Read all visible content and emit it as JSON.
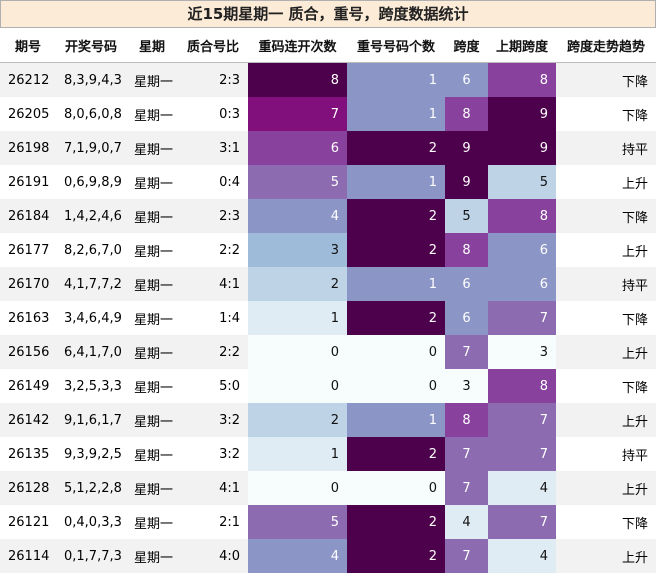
{
  "title": "近15期星期一 质合，重号，跨度数据统计",
  "columns": [
    "期号",
    "开奖号码",
    "星期",
    "质合号比",
    "重码连开次数",
    "重号号码个数",
    "跨度",
    "上期跨度",
    "跨度走势趋势"
  ],
  "rows": [
    {
      "period": "26212",
      "numbers": "8,3,9,4,3",
      "weekday": "星期一",
      "ratio": "2:3",
      "repeat_runs": "8",
      "repeat_count": "1",
      "span": "6",
      "prev_span": "8",
      "trend": "下降"
    },
    {
      "period": "26205",
      "numbers": "8,0,6,0,8",
      "weekday": "星期一",
      "ratio": "0:3",
      "repeat_runs": "7",
      "repeat_count": "1",
      "span": "8",
      "prev_span": "9",
      "trend": "下降"
    },
    {
      "period": "26198",
      "numbers": "7,1,9,0,7",
      "weekday": "星期一",
      "ratio": "3:1",
      "repeat_runs": "6",
      "repeat_count": "2",
      "span": "9",
      "prev_span": "9",
      "trend": "持平"
    },
    {
      "period": "26191",
      "numbers": "0,6,9,8,9",
      "weekday": "星期一",
      "ratio": "0:4",
      "repeat_runs": "5",
      "repeat_count": "1",
      "span": "9",
      "prev_span": "5",
      "trend": "上升"
    },
    {
      "period": "26184",
      "numbers": "1,4,2,4,6",
      "weekday": "星期一",
      "ratio": "2:3",
      "repeat_runs": "4",
      "repeat_count": "2",
      "span": "5",
      "prev_span": "8",
      "trend": "下降"
    },
    {
      "period": "26177",
      "numbers": "8,2,6,7,0",
      "weekday": "星期一",
      "ratio": "2:2",
      "repeat_runs": "3",
      "repeat_count": "2",
      "span": "8",
      "prev_span": "6",
      "trend": "上升"
    },
    {
      "period": "26170",
      "numbers": "4,1,7,7,2",
      "weekday": "星期一",
      "ratio": "4:1",
      "repeat_runs": "2",
      "repeat_count": "1",
      "span": "6",
      "prev_span": "6",
      "trend": "持平"
    },
    {
      "period": "26163",
      "numbers": "3,4,6,4,9",
      "weekday": "星期一",
      "ratio": "1:4",
      "repeat_runs": "1",
      "repeat_count": "2",
      "span": "6",
      "prev_span": "7",
      "trend": "下降"
    },
    {
      "period": "26156",
      "numbers": "6,4,1,7,0",
      "weekday": "星期一",
      "ratio": "2:2",
      "repeat_runs": "0",
      "repeat_count": "0",
      "span": "7",
      "prev_span": "3",
      "trend": "上升"
    },
    {
      "period": "26149",
      "numbers": "3,2,5,3,3",
      "weekday": "星期一",
      "ratio": "5:0",
      "repeat_runs": "0",
      "repeat_count": "0",
      "span": "3",
      "prev_span": "8",
      "trend": "下降"
    },
    {
      "period": "26142",
      "numbers": "9,1,6,1,7",
      "weekday": "星期一",
      "ratio": "3:2",
      "repeat_runs": "2",
      "repeat_count": "1",
      "span": "8",
      "prev_span": "7",
      "trend": "上升"
    },
    {
      "period": "26135",
      "numbers": "9,3,9,2,5",
      "weekday": "星期一",
      "ratio": "3:2",
      "repeat_runs": "1",
      "repeat_count": "2",
      "span": "7",
      "prev_span": "7",
      "trend": "持平"
    },
    {
      "period": "26128",
      "numbers": "5,1,2,2,8",
      "weekday": "星期一",
      "ratio": "4:1",
      "repeat_runs": "0",
      "repeat_count": "0",
      "span": "7",
      "prev_span": "4",
      "trend": "上升"
    },
    {
      "period": "26121",
      "numbers": "0,4,0,3,3",
      "weekday": "星期一",
      "ratio": "2:1",
      "repeat_runs": "5",
      "repeat_count": "2",
      "span": "4",
      "prev_span": "7",
      "trend": "下降"
    },
    {
      "period": "26114",
      "numbers": "0,1,7,7,3",
      "weekday": "星期一",
      "ratio": "4:0",
      "repeat_runs": "4",
      "repeat_count": "2",
      "span": "7",
      "prev_span": "4",
      "trend": "上升"
    }
  ],
  "heat_colors": {
    "repeat_runs": {
      "0": "#f7fcfd",
      "1": "#e0ecf4",
      "2": "#bfd3e6",
      "3": "#9ebcda",
      "4": "#8c96c6",
      "5": "#8c6bb1",
      "6": "#88419d",
      "7": "#810f7c",
      "8": "#4d004b"
    },
    "repeat_count": {
      "0": "#f7fcfd",
      "1": "#8c96c6",
      "2": "#4d004b"
    },
    "span": {
      "3": "#f7fcfd",
      "4": "#e0ecf4",
      "5": "#bfd3e6",
      "6": "#8c96c6",
      "7": "#8c6bb1",
      "8": "#88419d",
      "9": "#4d004b"
    },
    "prev_span": {
      "3": "#f7fcfd",
      "4": "#e0ecf4",
      "5": "#bfd3e6",
      "6": "#8c96c6",
      "7": "#8c6bb1",
      "8": "#88419d",
      "9": "#4d004b"
    }
  },
  "light_text_color": "#ffffff",
  "dark_text_color": "#111111"
}
